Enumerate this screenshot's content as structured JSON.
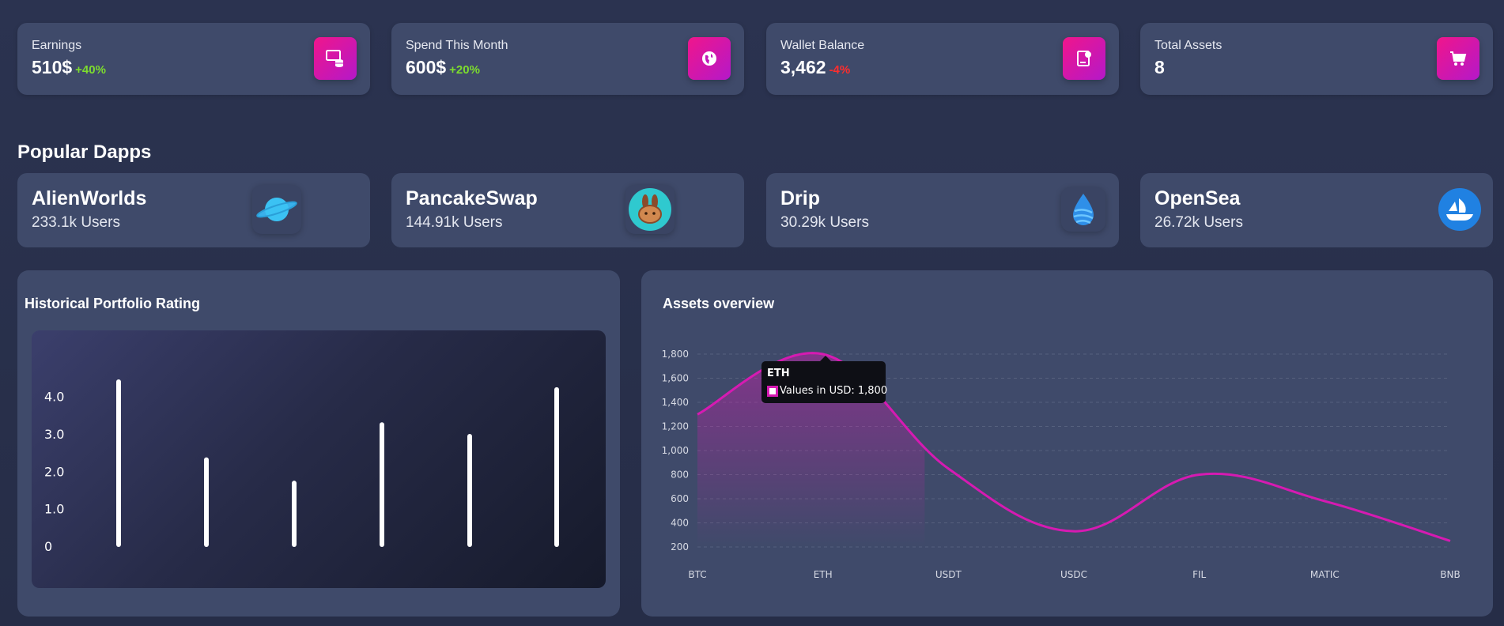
{
  "stats": [
    {
      "label": "Earnings",
      "value": "510$",
      "change": "+40%",
      "change_color": "#7ddc2e",
      "icon": "earnings-icon"
    },
    {
      "label": "Spend This Month",
      "value": "600$",
      "change": "+20%",
      "change_color": "#7ddc2e",
      "icon": "globe-icon"
    },
    {
      "label": "Wallet Balance",
      "value": "3,462",
      "change": "-4%",
      "change_color": "#ff2d2d",
      "icon": "wallet-icon"
    },
    {
      "label": "Total Assets",
      "value": "8",
      "change": "",
      "change_color": "#7ddc2e",
      "icon": "cart-icon"
    }
  ],
  "popular_dapps": {
    "title": "Popular Dapps",
    "items": [
      {
        "name": "AlienWorlds",
        "users": "233.1k Users",
        "icon": "planet-icon"
      },
      {
        "name": "PancakeSwap",
        "users": "144.91k Users",
        "icon": "bunny-icon"
      },
      {
        "name": "Drip",
        "users": "30.29k Users",
        "icon": "drop-icon"
      },
      {
        "name": "OpenSea",
        "users": "26.72k Users",
        "icon": "ship-icon"
      }
    ]
  },
  "colors": {
    "accent": "#d61ab2",
    "card": "#3f4a6a",
    "positive": "#7ddc2e",
    "negative": "#ff2d2d"
  },
  "chart_data": [
    {
      "type": "bar",
      "title": "Historical Portfolio Rating",
      "categories": [
        "",
        "",
        "",
        "",
        "",
        ""
      ],
      "values": [
        4.3,
        2.3,
        1.7,
        3.2,
        2.9,
        4.1
      ],
      "yticks": [
        "4.0",
        "3.0",
        "2.0",
        "1.0",
        "0"
      ],
      "ylim": [
        0,
        4.3
      ],
      "grid": false
    },
    {
      "type": "line",
      "title": "Assets overview",
      "categories": [
        "BTC",
        "ETH",
        "USDT",
        "USDC",
        "FIL",
        "MATIC",
        "BNB"
      ],
      "series": [
        {
          "name": "Values in USD",
          "values": [
            1300,
            1800,
            850,
            330,
            800,
            580,
            250
          ]
        }
      ],
      "yticks": [
        "1,800",
        "1,600",
        "1,400",
        "1,200",
        "1,000",
        "800",
        "600",
        "400",
        "200"
      ],
      "ylim": [
        200,
        1800
      ],
      "grid": true,
      "color": "#d61ab2",
      "tooltip": {
        "title": "ETH",
        "text": "Values in USD: 1,800"
      }
    }
  ]
}
